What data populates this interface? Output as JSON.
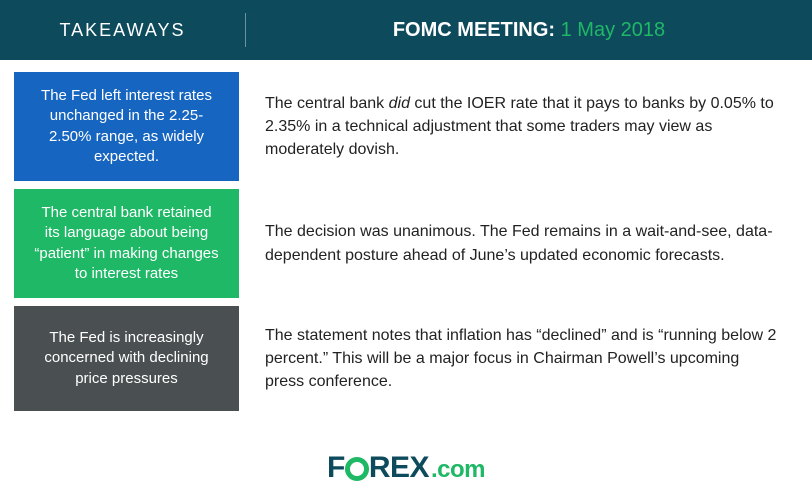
{
  "header": {
    "left_label": "TAKEAWAYS",
    "title_prefix": "FOMC MEETING:",
    "title_date": "1 May 2018"
  },
  "rows": [
    {
      "left_bg_color": "#1665c0",
      "left_text": "The Fed left interest rates unchanged in the 2.25-2.50% range, as widely expected.",
      "right_html": "The central bank <em>did</em> cut the IOER rate that it pays to banks by 0.05% to 2.35% in a technical adjustment that some traders may view as moderately dovish."
    },
    {
      "left_bg_color": "#1fb866",
      "left_text": "The central bank retained its language about being “patient” in making changes to interest rates",
      "right_html": "The decision was unanimous. The Fed remains in a wait-and-see, data-dependent posture ahead of June’s updated economic forecasts."
    },
    {
      "left_bg_color": "#4a4f52",
      "left_text": "The Fed is increasingly concerned with declining price pressures",
      "right_html": "The statement notes that inflation has “declined” and is “running below 2 percent.” This will be a major focus in Chairman Powell’s upcoming press conference."
    }
  ],
  "logo": {
    "part1": "F",
    "part2": "REX",
    "suffix": ".com"
  },
  "colors": {
    "header_bg": "#0d4a5c",
    "accent_green": "#1fb866",
    "text_dark": "#222222"
  }
}
